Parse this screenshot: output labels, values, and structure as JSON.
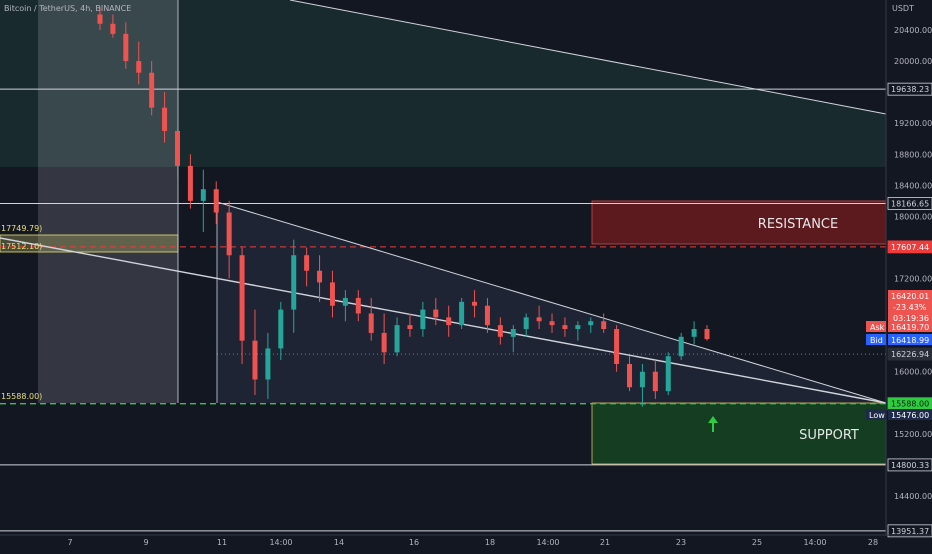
{
  "header": {
    "symbol": "Bitcoin / TetherUS, 4h, BINANCE",
    "currency": "USDT"
  },
  "zones": {
    "resistance_label": "RESISTANCE",
    "support_label": "SUPPORT"
  },
  "price_markers": {
    "last_price": "16420.01",
    "change": "-23.43%",
    "countdown": "03:19:36",
    "ask_label": "Ask",
    "ask_value": "16419.70",
    "bid_label": "Bid",
    "bid_value": "16418.99",
    "low_label": "Low",
    "low_value": "15476.00"
  },
  "left_labels": {
    "upper": "17749.79)",
    "middle": "17512.10)",
    "lower": "15588.00)"
  },
  "colors": {
    "background": "#131722",
    "bull": "#26a69a",
    "bear": "#ef5350",
    "resistance_fill": "#5c1a1f",
    "support_fill": "#143d22",
    "text": "#b2b5be"
  },
  "chart_data": {
    "type": "candlestick",
    "y_axis_ticks": [
      20400,
      20000,
      19200,
      18800,
      18400,
      18000,
      17200,
      16400,
      16000,
      15200,
      14400
    ],
    "ylim": [
      13900,
      20700
    ],
    "x_axis_ticks": [
      "7",
      "9",
      "11",
      "14:00",
      "14",
      "16",
      "18",
      "14:00",
      "21",
      "23",
      "25",
      "14:00",
      "28"
    ],
    "levels": [
      {
        "price": 19638.23,
        "label": "19638.23",
        "style": "solid"
      },
      {
        "price": 18166.65,
        "label": "18166.65",
        "style": "solid"
      },
      {
        "price": 17607.44,
        "label": "17607.44",
        "style": "dashed-red"
      },
      {
        "price": 16226.94,
        "label": "16226.94",
        "style": "dotted"
      },
      {
        "price": 15588.0,
        "label": "15588.00",
        "style": "dashed-green"
      },
      {
        "price": 14800.33,
        "label": "14800.33",
        "style": "solid"
      },
      {
        "price": 13951.37,
        "label": "13951.37",
        "style": "solid"
      }
    ],
    "series": [
      {
        "values": [
          [
            20600,
            20700,
            20400,
            20480
          ],
          [
            20480,
            20600,
            20300,
            20350
          ],
          [
            20350,
            20500,
            19900,
            20000
          ],
          [
            20000,
            20250,
            19700,
            19850
          ],
          [
            19850,
            20000,
            19300,
            19400
          ],
          [
            19400,
            19600,
            18950,
            19100
          ],
          [
            19100,
            19200,
            18500,
            18650
          ],
          [
            18650,
            18800,
            18100,
            18200
          ],
          [
            18200,
            18600,
            17800,
            18350
          ],
          [
            18350,
            18450,
            17900,
            18050
          ],
          [
            18050,
            18200,
            17200,
            17500
          ],
          [
            17500,
            17600,
            16100,
            16400
          ],
          [
            16400,
            16800,
            15700,
            15900
          ],
          [
            15900,
            16500,
            15650,
            16300
          ],
          [
            16300,
            16900,
            16150,
            16800
          ],
          [
            16800,
            17700,
            16500,
            17500
          ],
          [
            17500,
            17600,
            17100,
            17300
          ],
          [
            17300,
            17500,
            16900,
            17150
          ],
          [
            17150,
            17300,
            16700,
            16850
          ],
          [
            16850,
            17050,
            16650,
            16950
          ],
          [
            16950,
            17050,
            16650,
            16750
          ],
          [
            16750,
            16950,
            16400,
            16500
          ],
          [
            16500,
            16750,
            16100,
            16250
          ],
          [
            16250,
            16700,
            16200,
            16600
          ],
          [
            16600,
            16750,
            16450,
            16550
          ],
          [
            16550,
            16900,
            16450,
            16800
          ],
          [
            16800,
            16950,
            16600,
            16700
          ],
          [
            16700,
            16850,
            16450,
            16600
          ],
          [
            16600,
            16950,
            16550,
            16900
          ],
          [
            16900,
            17050,
            16700,
            16850
          ],
          [
            16850,
            16950,
            16500,
            16600
          ],
          [
            16600,
            16700,
            16350,
            16450
          ],
          [
            16450,
            16600,
            16250,
            16550
          ],
          [
            16550,
            16750,
            16450,
            16700
          ],
          [
            16700,
            16850,
            16550,
            16650
          ],
          [
            16650,
            16750,
            16500,
            16600
          ],
          [
            16600,
            16700,
            16450,
            16550
          ],
          [
            16550,
            16650,
            16400,
            16600
          ],
          [
            16600,
            16700,
            16500,
            16650
          ],
          [
            16650,
            16750,
            16500,
            16550
          ],
          [
            16550,
            16600,
            16000,
            16100
          ],
          [
            16100,
            16200,
            15750,
            15800
          ],
          [
            15800,
            16100,
            15550,
            16000
          ],
          [
            16000,
            16150,
            15650,
            15750
          ],
          [
            15750,
            16250,
            15700,
            16200
          ],
          [
            16200,
            16500,
            16150,
            16450
          ],
          [
            16450,
            16650,
            16350,
            16550
          ],
          [
            16550,
            16600,
            16400,
            16420
          ]
        ]
      }
    ]
  }
}
